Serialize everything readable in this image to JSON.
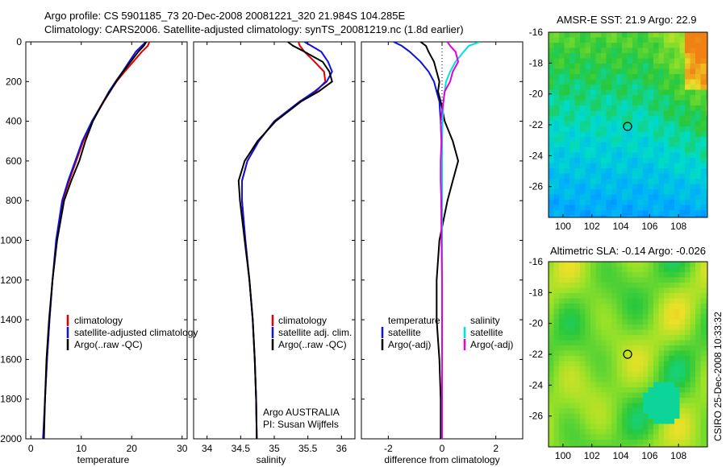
{
  "header": {
    "line1": "Argo profile: CS 5901185_73 20-Dec-2008 20081221_320 21.984S 104.285E",
    "line2": "Climatology: CARS2006. Satellite-adjusted climatology: synTS_20081219.nc (1.8d earlier)"
  },
  "footer_stamp": "CSIRO 25-Dec-2008 10:33:32",
  "colors": {
    "climatology": "#e00000",
    "satellite": "#1010e0",
    "argo": "#000000",
    "sal_satellite": "#00e0e0",
    "sal_argo": "#e000e0"
  },
  "depth_axis": {
    "ylim": [
      0,
      2000
    ],
    "ticks": [
      0,
      200,
      400,
      600,
      800,
      1000,
      1200,
      1400,
      1600,
      1800,
      2000
    ]
  },
  "chart_data": [
    {
      "id": "temperature",
      "type": "line",
      "xlabel": "temperature",
      "xlim": [
        -1,
        31
      ],
      "xticks": [
        0,
        10,
        20,
        30
      ],
      "depth": [
        0,
        20,
        50,
        100,
        150,
        200,
        250,
        300,
        400,
        500,
        600,
        700,
        800,
        1000,
        1200,
        1400,
        1600,
        1800,
        2000
      ],
      "series": [
        {
          "name": "climatology",
          "values": [
            23.5,
            23.2,
            22.0,
            20.3,
            18.6,
            17.0,
            15.7,
            14.5,
            12.2,
            10.4,
            9.0,
            7.6,
            6.3,
            5.1,
            4.3,
            3.7,
            3.2,
            2.8,
            2.5
          ]
        },
        {
          "name": "satellite-adjusted climatology",
          "values": [
            22.8,
            22.0,
            20.8,
            19.5,
            18.2,
            16.8,
            15.5,
            14.4,
            12.1,
            10.2,
            8.8,
            7.4,
            6.2,
            5.0,
            4.3,
            3.7,
            3.2,
            2.8,
            2.4
          ]
        },
        {
          "name": "Argo(..raw -QC)",
          "values": [
            22.9,
            22.4,
            21.3,
            19.8,
            18.3,
            16.9,
            15.7,
            14.4,
            12.3,
            10.8,
            9.6,
            8.0,
            6.6,
            5.2,
            4.3,
            3.6,
            3.1,
            2.8,
            2.6
          ]
        }
      ],
      "legend": {
        "items": [
          "climatology",
          "satellite-adjusted climatology",
          "Argo(..raw -QC)"
        ]
      }
    },
    {
      "id": "salinity",
      "type": "line",
      "xlabel": "salinity",
      "xlim": [
        33.8,
        36.2
      ],
      "xticks": [
        34,
        34.5,
        35,
        35.5,
        36
      ],
      "depth": [
        0,
        20,
        50,
        100,
        150,
        200,
        250,
        300,
        400,
        500,
        600,
        700,
        800,
        1000,
        1200,
        1400,
        1600,
        1800,
        2000
      ],
      "series": [
        {
          "name": "climatology",
          "values": [
            35.36,
            35.38,
            35.45,
            35.6,
            35.74,
            35.76,
            35.62,
            35.38,
            35.0,
            34.77,
            34.6,
            34.52,
            34.52,
            34.57,
            34.63,
            34.68,
            34.71,
            34.73,
            34.74
          ]
        },
        {
          "name": "satellite adj. clim.",
          "values": [
            35.45,
            35.55,
            35.7,
            35.8,
            35.86,
            35.78,
            35.6,
            35.38,
            35.0,
            34.77,
            34.6,
            34.52,
            34.52,
            34.57,
            34.63,
            34.68,
            34.71,
            34.73,
            34.74
          ]
        },
        {
          "name": "Argo(..raw -QC)",
          "values": [
            35.2,
            35.28,
            35.45,
            35.72,
            35.82,
            35.86,
            35.66,
            35.4,
            35.02,
            34.75,
            34.56,
            34.47,
            34.49,
            34.56,
            34.63,
            34.68,
            34.71,
            34.73,
            34.74
          ]
        }
      ],
      "legend": {
        "items": [
          "climatology",
          "satellite adj. clim.",
          "Argo(..raw -QC)"
        ]
      },
      "annotation": [
        "Argo AUSTRALIA",
        "PI: Susan Wijffels"
      ]
    },
    {
      "id": "difference",
      "type": "line",
      "xlabel": "difference from climatology",
      "xlim": [
        -3,
        3
      ],
      "xticks": [
        -2,
        0,
        2
      ],
      "depth": [
        0,
        20,
        50,
        100,
        150,
        200,
        250,
        300,
        400,
        500,
        600,
        700,
        800,
        1000,
        1200,
        1400,
        1600,
        1800,
        2000
      ],
      "series": [
        {
          "name": "temperature satellite",
          "values": [
            -1.8,
            -1.5,
            -1.2,
            -0.8,
            -0.5,
            -0.3,
            -0.2,
            -0.1,
            -0.05,
            -0.02,
            0,
            0,
            0,
            0,
            0,
            0,
            0,
            0,
            0
          ]
        },
        {
          "name": "temperature Argo(-adj)",
          "values": [
            -0.8,
            -0.6,
            -0.5,
            -0.3,
            -0.2,
            -0.1,
            -0.15,
            -0.05,
            0.1,
            0.4,
            0.6,
            0.4,
            0.2,
            -0.1,
            -0.2,
            -0.2,
            -0.1,
            -0.05,
            -0.05
          ]
        },
        {
          "name": "salinity satellite",
          "values": [
            1.4,
            1.0,
            0.8,
            0.5,
            0.3,
            0.15,
            0.1,
            0.05,
            0.02,
            0,
            0,
            0,
            0,
            0,
            0,
            0,
            0,
            0,
            0
          ]
        },
        {
          "name": "salinity Argo(-adj)",
          "values": [
            0.2,
            0.3,
            0.5,
            0.6,
            0.4,
            0.3,
            0.1,
            0.05,
            -0.05,
            -0.02,
            -0.05,
            -0.05,
            -0.03,
            -0.02,
            0,
            0,
            0,
            0,
            0
          ]
        }
      ],
      "legend": {
        "temp_header": "temperature",
        "sal_header": "salinity",
        "temp_items": [
          "satellite",
          "Argo(-adj)"
        ],
        "sal_items": [
          "satellite",
          "Argo(-adj)"
        ]
      }
    },
    {
      "id": "sst_map",
      "type": "heatmap",
      "title": "AMSR-E SST: 21.9 Argo: 22.9",
      "xlim": [
        99,
        110
      ],
      "ylim": [
        -28,
        -16
      ],
      "xticks": [
        100,
        102,
        104,
        106,
        108
      ],
      "yticks": [
        -16,
        -18,
        -20,
        -22,
        -24,
        -26
      ],
      "marker": [
        104.285,
        -21.984
      ]
    },
    {
      "id": "sla_map",
      "type": "heatmap",
      "title": "Altimetric SLA: -0.14 Argo: -0.026",
      "xlim": [
        99,
        110
      ],
      "ylim": [
        -28,
        -16
      ],
      "xticks": [
        100,
        102,
        104,
        106,
        108
      ],
      "yticks": [
        -16,
        -18,
        -20,
        -22,
        -24,
        -26
      ],
      "marker": [
        104.285,
        -21.984
      ]
    }
  ]
}
